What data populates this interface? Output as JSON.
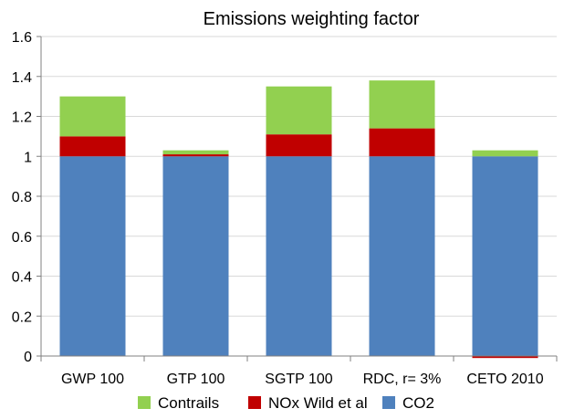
{
  "chart_data": {
    "type": "bar",
    "stacked": true,
    "title": "Emissions weighting factor",
    "xlabel": "",
    "ylabel": "",
    "categories": [
      "GWP 100",
      "GTP 100",
      "SGTP 100",
      "RDC, r= 3%",
      "CETO 2010"
    ],
    "ylim": [
      0,
      1.6
    ],
    "yticks": [
      "0",
      "0.2",
      "0.4",
      "0.6",
      "0.8",
      "1",
      "1.2",
      "1.4",
      "1.6"
    ],
    "grid": true,
    "legend_position": "bottom",
    "series": [
      {
        "name": "CO2",
        "color": "#4f81bd",
        "values": [
          1.0,
          1.0,
          1.0,
          1.0,
          1.0
        ]
      },
      {
        "name": "NOx Wild et al",
        "color": "#c00000",
        "values": [
          0.1,
          0.01,
          0.11,
          0.14,
          -0.01
        ]
      },
      {
        "name": "Contrails",
        "color": "#92d050",
        "values": [
          0.2,
          0.02,
          0.24,
          0.24,
          0.03
        ]
      }
    ],
    "legend_order": [
      "Contrails",
      "NOx Wild et al",
      "CO2"
    ]
  }
}
